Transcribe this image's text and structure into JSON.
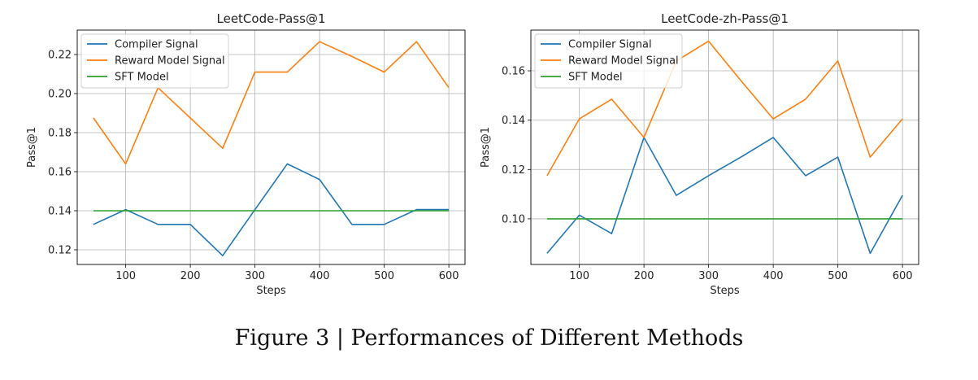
{
  "figure": {
    "caption": "Figure 3 | Performances of Different Methods"
  },
  "chart_data": [
    {
      "type": "line",
      "title": "LeetCode-Pass@1",
      "xlabel": "Steps",
      "ylabel": "Pass@1",
      "xlim": [
        25,
        625
      ],
      "ylim": [
        0.1125,
        0.2325
      ],
      "xticks": [
        100,
        200,
        300,
        400,
        500,
        600
      ],
      "yticks": [
        0.12,
        0.14,
        0.16,
        0.18,
        0.2,
        0.22
      ],
      "ytick_labels": [
        "0.12",
        "0.14",
        "0.16",
        "0.18",
        "0.20",
        "0.22"
      ],
      "grid": true,
      "legend": "upper-left",
      "x": [
        50,
        100,
        150,
        200,
        250,
        300,
        350,
        400,
        450,
        500,
        550,
        600
      ],
      "series": [
        {
          "name": "Compiler Signal",
          "color": "#1f77b4",
          "values": [
            0.133,
            0.1406,
            0.133,
            0.133,
            0.117,
            0.1406,
            0.164,
            0.156,
            0.133,
            0.133,
            0.1406,
            0.1406
          ]
        },
        {
          "name": "Reward Model Signal",
          "color": "#ff7f0e",
          "values": [
            0.1875,
            0.164,
            0.203,
            0.1875,
            0.172,
            0.211,
            0.211,
            0.2266,
            0.219,
            0.211,
            0.2266,
            0.203
          ]
        },
        {
          "name": "SFT Model",
          "color": "#2ca02c",
          "values": [
            0.14,
            0.14,
            0.14,
            0.14,
            0.14,
            0.14,
            0.14,
            0.14,
            0.14,
            0.14,
            0.14,
            0.14
          ]
        }
      ]
    },
    {
      "type": "line",
      "title": "LeetCode-zh-Pass@1",
      "xlabel": "Steps",
      "ylabel": "Pass@1",
      "xlim": [
        25,
        625
      ],
      "ylim": [
        0.0815,
        0.1765
      ],
      "xticks": [
        100,
        200,
        300,
        400,
        500,
        600
      ],
      "yticks": [
        0.1,
        0.12,
        0.14,
        0.16
      ],
      "ytick_labels": [
        "0.10",
        "0.12",
        "0.14",
        "0.16"
      ],
      "grid": true,
      "legend": "upper-left",
      "x": [
        50,
        100,
        150,
        200,
        250,
        300,
        350,
        400,
        450,
        500,
        550,
        600
      ],
      "series": [
        {
          "name": "Compiler Signal",
          "color": "#1f77b4",
          "values": [
            0.086,
            0.1015,
            0.094,
            0.133,
            0.1095,
            0.1175,
            0.125,
            0.133,
            0.1175,
            0.125,
            0.086,
            0.1095
          ]
        },
        {
          "name": "Reward Model Signal",
          "color": "#ff7f0e",
          "values": [
            0.1175,
            0.1405,
            0.1485,
            0.133,
            0.164,
            0.172,
            0.156,
            0.1405,
            0.1485,
            0.164,
            0.125,
            0.1405
          ]
        },
        {
          "name": "SFT Model",
          "color": "#2ca02c",
          "values": [
            0.1,
            0.1,
            0.1,
            0.1,
            0.1,
            0.1,
            0.1,
            0.1,
            0.1,
            0.1,
            0.1,
            0.1
          ]
        }
      ]
    }
  ]
}
